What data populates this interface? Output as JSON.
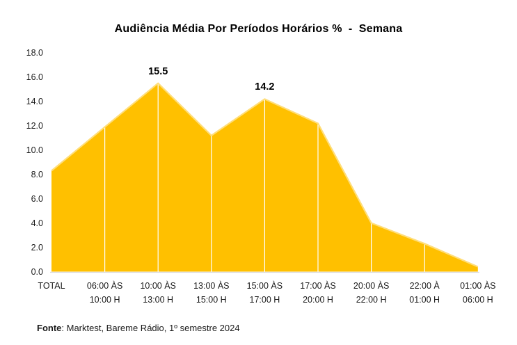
{
  "title": "Audiência Média Por Períodos Horários %  -  Semana",
  "source": {
    "label": "Fonte",
    "text": ": Marktest, Bareme Rádio, 1º semestre 2024"
  },
  "chart_data": {
    "type": "area",
    "title": "Audiência Média Por Períodos Horários %  -  Semana",
    "categories": [
      "TOTAL",
      "06:00 ÀS\n10:00 H",
      "10:00 ÀS\n13:00 H",
      "13:00 ÀS\n15:00 H",
      "15:00 ÀS\n17:00 H",
      "17:00 ÀS\n20:00 H",
      "20:00 ÀS\n22:00 H",
      "22:00 À\n01:00 H",
      "01:00 ÀS\n06:00 H"
    ],
    "values": [
      8.3,
      11.9,
      15.5,
      11.2,
      14.2,
      12.2,
      4.0,
      2.3,
      0.4
    ],
    "data_labels": [
      null,
      null,
      "15.5",
      null,
      "14.2",
      null,
      null,
      null,
      null
    ],
    "yticks": [
      "0.0",
      "2.0",
      "4.0",
      "6.0",
      "8.0",
      "10.0",
      "12.0",
      "14.0",
      "16.0",
      "18.0"
    ],
    "ylim": [
      0,
      18
    ],
    "ytick_step": 2,
    "xlabel": "",
    "ylabel": "",
    "legend": "none",
    "grid": "vertical-white-lines-over-area",
    "colors": {
      "area_fill": "#FFC000",
      "area_edge": "#FFDE7A",
      "gridline": "#FFFFFF",
      "axis_line": "#D9D9D9",
      "text": "#000000"
    }
  }
}
